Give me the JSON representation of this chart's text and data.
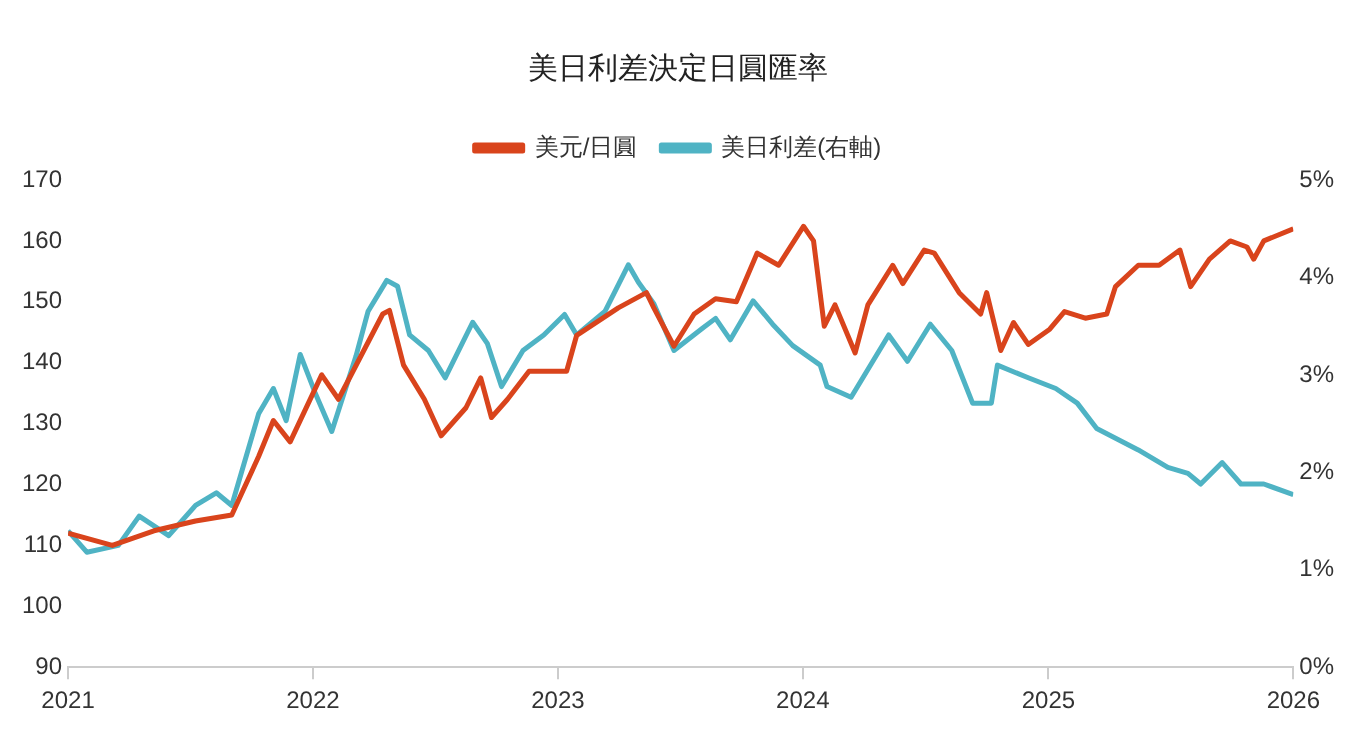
{
  "chart_data": {
    "type": "line",
    "title": "美日利差決定日圓匯率",
    "legend": "top",
    "grid": false,
    "marker": "none",
    "line_style": "solid",
    "xlim": [
      "2021",
      "2026"
    ],
    "xticks": [
      "2021",
      "2022",
      "2023",
      "2024",
      "2025",
      "2026"
    ],
    "ylim": [
      90,
      170
    ],
    "yticks": [
      90,
      100,
      110,
      120,
      130,
      140,
      150,
      160,
      170
    ],
    "y2lim": [
      0,
      5
    ],
    "y2ticks": [
      {
        "value": 0,
        "label": "0%"
      },
      {
        "value": 1,
        "label": "1%"
      },
      {
        "value": 2,
        "label": "2%"
      },
      {
        "value": 3,
        "label": "3%"
      },
      {
        "value": 4,
        "label": "4%"
      },
      {
        "value": 5,
        "label": "5%"
      }
    ],
    "series": [
      {
        "name": "美元/日圓",
        "color": "#d9441c",
        "x": [
          "2021-01-01",
          "2021-03-08",
          "2021-05-09",
          "2021-07-10",
          "2021-09-02",
          "2021-10-12",
          "2021-11-03",
          "2021-11-28",
          "2022-01-14",
          "2022-02-08",
          "2022-04-15",
          "2022-04-25",
          "2022-05-16",
          "2022-06-16",
          "2022-07-11",
          "2022-08-17",
          "2022-09-08",
          "2022-09-24",
          "2022-10-18",
          "2022-11-19",
          "2023-01-14",
          "2023-01-29",
          "2023-04-01",
          "2023-05-13",
          "2023-05-24",
          "2023-06-23",
          "2023-07-23",
          "2023-08-24",
          "2023-09-24",
          "2023-10-25",
          "2023-11-26",
          "2024-01-02",
          "2024-01-17",
          "2024-02-02",
          "2024-02-18",
          "2024-03-19",
          "2024-04-07",
          "2024-05-14",
          "2024-05-29",
          "2024-06-30",
          "2024-07-15",
          "2024-08-21",
          "2024-09-22",
          "2024-10-01",
          "2024-10-22",
          "2024-11-10",
          "2024-12-02",
          "2025-01-03",
          "2025-01-25",
          "2025-02-25",
          "2025-03-29",
          "2025-04-11",
          "2025-05-15",
          "2025-06-15",
          "2025-07-16",
          "2025-08-01",
          "2025-08-29",
          "2025-09-29",
          "2025-10-24",
          "2025-11-03",
          "2025-11-18",
          "2026-01-01"
        ],
        "values": [
          112,
          110,
          112.4,
          114,
          115,
          124.6,
          130.5,
          127,
          138,
          134,
          148,
          148.6,
          139.6,
          134,
          128,
          132.6,
          137.5,
          131,
          134,
          138.6,
          138.6,
          144.5,
          149,
          151.5,
          149,
          142.7,
          148,
          150.5,
          150,
          158,
          156,
          162.4,
          160,
          146,
          149.5,
          141.6,
          149.5,
          156,
          153,
          158.5,
          158,
          151.5,
          148,
          151.5,
          142,
          146.6,
          143,
          145.5,
          148.4,
          147.3,
          148,
          152.5,
          156,
          156,
          158.5,
          152.5,
          157,
          160,
          159,
          157,
          160,
          162
        ]
      },
      {
        "name": "美日利差(右軸)",
        "color": "#4fb3c4",
        "axis": "y2",
        "x": [
          "2021-01-01",
          "2021-01-29",
          "2021-03-17",
          "2021-04-17",
          "2021-05-31",
          "2021-07-10",
          "2021-08-10",
          "2021-09-02",
          "2021-10-12",
          "2021-11-03",
          "2021-11-22",
          "2021-12-13",
          "2022-01-04",
          "2022-01-29",
          "2022-03-06",
          "2022-03-24",
          "2022-04-21",
          "2022-05-07",
          "2022-05-25",
          "2022-06-22",
          "2022-07-17",
          "2022-08-27",
          "2022-09-18",
          "2022-10-09",
          "2022-11-10",
          "2022-12-11",
          "2023-01-11",
          "2023-01-29",
          "2023-03-12",
          "2023-04-16",
          "2023-05-01",
          "2023-05-24",
          "2023-06-23",
          "2023-08-03",
          "2023-08-24",
          "2023-09-15",
          "2023-10-19",
          "2023-11-17",
          "2023-12-17",
          "2024-01-27",
          "2024-02-06",
          "2024-03-13",
          "2024-05-08",
          "2024-06-05",
          "2024-07-09",
          "2024-08-10",
          "2024-09-10",
          "2024-10-08",
          "2024-10-17",
          "2024-12-02",
          "2025-01-12",
          "2025-02-13",
          "2025-03-14",
          "2025-04-14",
          "2025-05-15",
          "2025-06-28",
          "2025-07-28",
          "2025-08-16",
          "2025-09-17",
          "2025-10-15",
          "2025-11-18",
          "2026-01-01"
        ],
        "values": [
          1.4,
          1.18,
          1.25,
          1.55,
          1.35,
          1.66,
          1.79,
          1.66,
          2.6,
          2.86,
          2.53,
          3.21,
          2.82,
          2.42,
          3.19,
          3.65,
          3.97,
          3.91,
          3.41,
          3.25,
          2.97,
          3.54,
          3.32,
          2.88,
          3.25,
          3.41,
          3.62,
          3.41,
          3.65,
          4.13,
          3.95,
          3.73,
          3.25,
          3.47,
          3.58,
          3.36,
          3.76,
          3.52,
          3.3,
          3.1,
          2.88,
          2.77,
          3.41,
          3.14,
          3.52,
          3.25,
          2.71,
          2.71,
          3.1,
          2.97,
          2.86,
          2.71,
          2.45,
          2.34,
          2.23,
          2.05,
          1.99,
          1.88,
          2.1,
          1.88,
          1.88,
          1.77
        ]
      }
    ]
  }
}
